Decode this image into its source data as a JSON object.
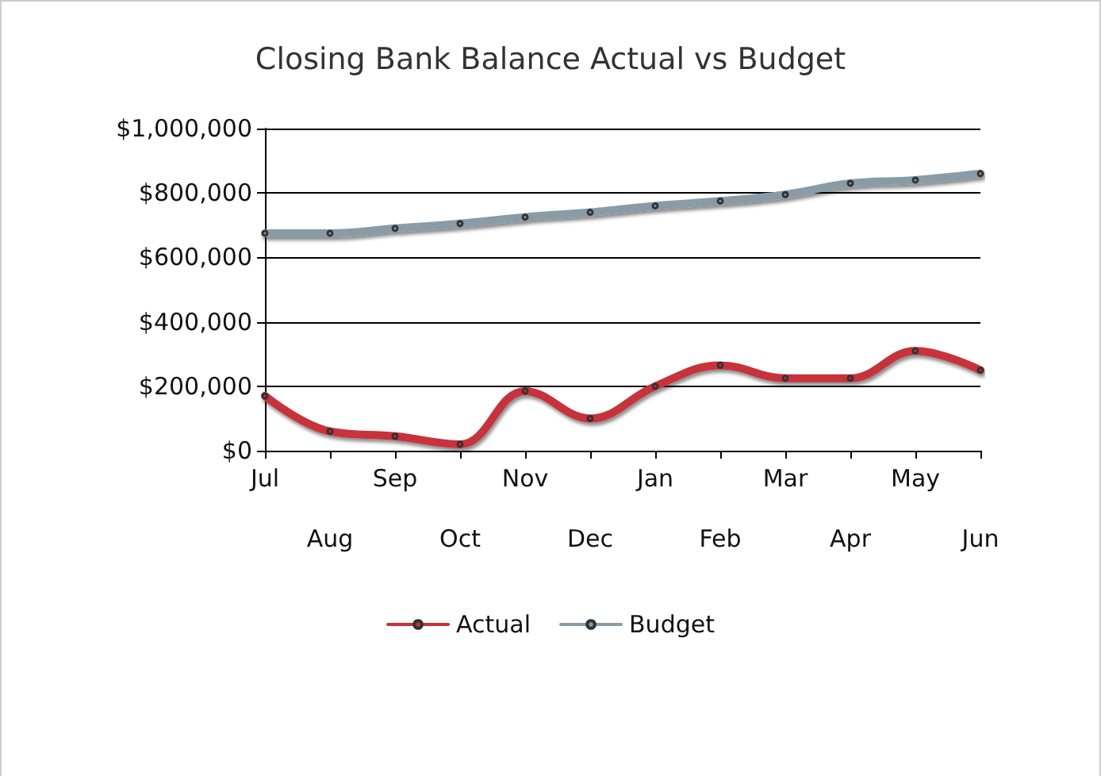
{
  "chart_data": {
    "type": "line",
    "title": "Closing Bank Balance Actual vs Budget",
    "categories": [
      "Jul",
      "Aug",
      "Sep",
      "Oct",
      "Nov",
      "Dec",
      "Jan",
      "Feb",
      "Mar",
      "Apr",
      "May",
      "Jun"
    ],
    "series": [
      {
        "name": "Actual",
        "color": "#c8313a",
        "values": [
          170000,
          60000,
          45000,
          20000,
          185000,
          100000,
          200000,
          265000,
          225000,
          225000,
          310000,
          250000
        ]
      },
      {
        "name": "Budget",
        "color": "#8a9ba8",
        "values": [
          675000,
          675000,
          690000,
          705000,
          725000,
          740000,
          760000,
          775000,
          795000,
          830000,
          840000,
          860000
        ]
      }
    ],
    "ylim": [
      0,
      1000000
    ],
    "yticks": [
      {
        "value": 0,
        "label": "$0"
      },
      {
        "value": 200000,
        "label": "$200,000"
      },
      {
        "value": 400000,
        "label": "$400,000"
      },
      {
        "value": 600000,
        "label": "$600,000"
      },
      {
        "value": 800000,
        "label": "$800,000"
      },
      {
        "value": 1000000,
        "label": "$1,000,000"
      }
    ],
    "grid": "y",
    "legend": "bottom",
    "marker": "circle",
    "line_style": "solid"
  }
}
